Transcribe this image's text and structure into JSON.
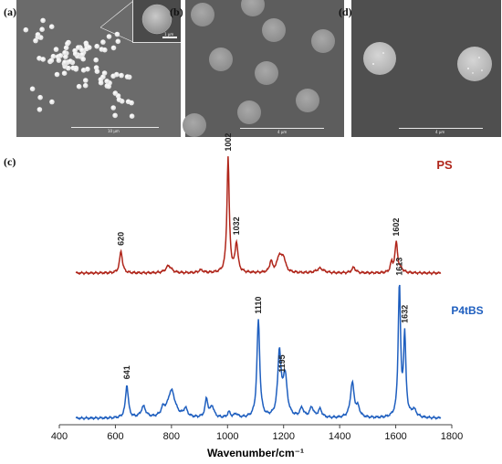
{
  "panels": {
    "a": {
      "label": "(a)",
      "scale_text": "10 μm",
      "inset_scale_text": "1 μm"
    },
    "b": {
      "label": "(b)",
      "scale_text": "4 μm"
    },
    "d": {
      "label": "(d)",
      "scale_text": "4 μm"
    },
    "c": {
      "label": "(c)"
    }
  },
  "chart_data": {
    "type": "line",
    "xlabel": "Wavenumber/cm⁻¹",
    "xlim": [
      400,
      1800
    ],
    "xticks": [
      400,
      600,
      800,
      1000,
      1200,
      1400,
      1600,
      1800
    ],
    "colors": {
      "PS": "#b0261b",
      "P4tBS": "#1f5fbf"
    },
    "series": [
      {
        "name": "PS",
        "peaks": [
          {
            "x": 620,
            "label": "620"
          },
          {
            "x": 1002,
            "label": "1002"
          },
          {
            "x": 1032,
            "label": "1032"
          },
          {
            "x": 1602,
            "label": "1602"
          }
        ]
      },
      {
        "name": "P4tBS",
        "peaks": [
          {
            "x": 641,
            "label": "641"
          },
          {
            "x": 1110,
            "label": "1110"
          },
          {
            "x": 1195,
            "label": "1195"
          },
          {
            "x": 1613,
            "label": "1613"
          },
          {
            "x": 1632,
            "label": "1632"
          }
        ]
      }
    ]
  }
}
